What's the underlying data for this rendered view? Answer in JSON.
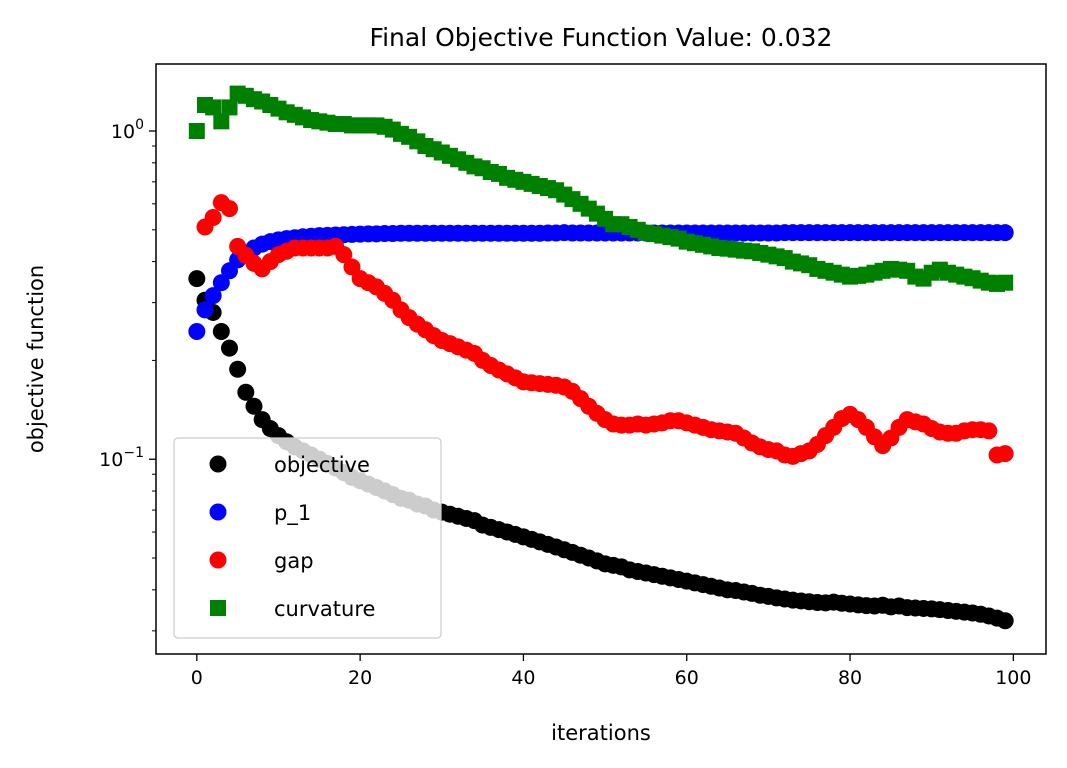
{
  "chart_data": {
    "type": "scatter",
    "title": "Final Objective Function Value: 0.032",
    "xlabel": "iterations",
    "ylabel": "objective function",
    "yscale": "log",
    "xlim": [
      -5,
      104
    ],
    "ylim": [
      0.0255,
      1.6
    ],
    "grid": false,
    "legend_position": "lower-left",
    "x_ticks": [
      0,
      20,
      40,
      60,
      80,
      100
    ],
    "x_tick_labels": [
      "0",
      "20",
      "40",
      "60",
      "80",
      "100"
    ],
    "y_ticks": [
      {
        "value": 1,
        "base": "10",
        "exp": "0"
      },
      {
        "value": 0.1,
        "base": "10",
        "exp": "−1"
      }
    ],
    "y_minor_ticks": [
      0.03,
      0.04,
      0.05,
      0.06,
      0.07,
      0.08,
      0.09,
      0.2,
      0.3,
      0.4,
      0.5,
      0.6,
      0.7,
      0.8,
      0.9
    ],
    "x": [
      0,
      1,
      2,
      3,
      4,
      5,
      6,
      7,
      8,
      9,
      10,
      11,
      12,
      13,
      14,
      15,
      16,
      17,
      18,
      19,
      20,
      21,
      22,
      23,
      24,
      25,
      26,
      27,
      28,
      29,
      30,
      31,
      32,
      33,
      34,
      35,
      36,
      37,
      38,
      39,
      40,
      41,
      42,
      43,
      44,
      45,
      46,
      47,
      48,
      49,
      50,
      51,
      52,
      53,
      54,
      55,
      56,
      57,
      58,
      59,
      60,
      61,
      62,
      63,
      64,
      65,
      66,
      67,
      68,
      69,
      70,
      71,
      72,
      73,
      74,
      75,
      76,
      77,
      78,
      79,
      80,
      81,
      82,
      83,
      84,
      85,
      86,
      87,
      88,
      89,
      90,
      91,
      92,
      93,
      94,
      95,
      96,
      97,
      98,
      99
    ],
    "series": [
      {
        "name": "objective",
        "marker": "circle",
        "color": "#000000",
        "values": [
          0.355,
          0.305,
          0.28,
          0.245,
          0.218,
          0.188,
          0.16,
          0.145,
          0.132,
          0.124,
          0.118,
          0.113,
          0.109,
          0.106,
          0.103,
          0.1,
          0.097,
          0.094,
          0.091,
          0.088,
          0.086,
          0.084,
          0.082,
          0.08,
          0.078,
          0.076,
          0.075,
          0.073,
          0.072,
          0.07,
          0.069,
          0.068,
          0.067,
          0.066,
          0.065,
          0.063,
          0.062,
          0.061,
          0.06,
          0.059,
          0.058,
          0.057,
          0.056,
          0.055,
          0.054,
          0.053,
          0.052,
          0.051,
          0.05,
          0.049,
          0.048,
          0.0475,
          0.047,
          0.046,
          0.0455,
          0.045,
          0.0445,
          0.044,
          0.0435,
          0.043,
          0.0425,
          0.042,
          0.0415,
          0.041,
          0.0405,
          0.04,
          0.0398,
          0.0394,
          0.039,
          0.0385,
          0.0382,
          0.0378,
          0.0375,
          0.0372,
          0.037,
          0.0368,
          0.0366,
          0.0365,
          0.0367,
          0.0364,
          0.0362,
          0.036,
          0.0358,
          0.0357,
          0.0359,
          0.0355,
          0.0357,
          0.0353,
          0.0352,
          0.0351,
          0.035,
          0.0348,
          0.0346,
          0.0344,
          0.0342,
          0.034,
          0.0337,
          0.0333,
          0.0328,
          0.0322
        ]
      },
      {
        "name": "p_1",
        "marker": "circle",
        "color": "#0000ff",
        "values": [
          0.245,
          0.285,
          0.315,
          0.345,
          0.375,
          0.405,
          0.425,
          0.44,
          0.452,
          0.46,
          0.466,
          0.47,
          0.473,
          0.476,
          0.478,
          0.48,
          0.481,
          0.482,
          0.483,
          0.484,
          0.485,
          0.486,
          0.486,
          0.487,
          0.487,
          0.488,
          0.488,
          0.488,
          0.488,
          0.488,
          0.488,
          0.488,
          0.488,
          0.488,
          0.488,
          0.488,
          0.488,
          0.488,
          0.488,
          0.488,
          0.488,
          0.488,
          0.488,
          0.489,
          0.489,
          0.49,
          0.489,
          0.489,
          0.489,
          0.489,
          0.489,
          0.489,
          0.489,
          0.489,
          0.489,
          0.489,
          0.489,
          0.489,
          0.489,
          0.489,
          0.489,
          0.489,
          0.489,
          0.489,
          0.489,
          0.489,
          0.489,
          0.489,
          0.489,
          0.489,
          0.489,
          0.489,
          0.49,
          0.49,
          0.49,
          0.49,
          0.49,
          0.49,
          0.49,
          0.49,
          0.49,
          0.49,
          0.49,
          0.49,
          0.49,
          0.49,
          0.49,
          0.49,
          0.49,
          0.49,
          0.49,
          0.49,
          0.49,
          0.49,
          0.49,
          0.49,
          0.49,
          0.49,
          0.49,
          0.49
        ]
      },
      {
        "name": "gap",
        "marker": "circle",
        "color": "#ff0000",
        "values": [
          null,
          0.51,
          0.545,
          0.605,
          0.58,
          0.445,
          0.418,
          0.395,
          0.38,
          0.4,
          0.42,
          0.43,
          0.44,
          0.44,
          0.44,
          0.44,
          0.44,
          0.445,
          0.42,
          0.385,
          0.355,
          0.345,
          0.335,
          0.32,
          0.305,
          0.285,
          0.27,
          0.258,
          0.248,
          0.238,
          0.23,
          0.225,
          0.22,
          0.215,
          0.21,
          0.2,
          0.193,
          0.187,
          0.182,
          0.177,
          0.172,
          0.171,
          0.17,
          0.169,
          0.168,
          0.166,
          0.161,
          0.153,
          0.145,
          0.138,
          0.132,
          0.128,
          0.127,
          0.127,
          0.128,
          0.127,
          0.128,
          0.129,
          0.131,
          0.131,
          0.129,
          0.127,
          0.125,
          0.123,
          0.122,
          0.121,
          0.12,
          0.116,
          0.112,
          0.109,
          0.107,
          0.106,
          0.103,
          0.102,
          0.104,
          0.106,
          0.111,
          0.118,
          0.125,
          0.133,
          0.137,
          0.132,
          0.125,
          0.117,
          0.11,
          0.116,
          0.125,
          0.132,
          0.13,
          0.128,
          0.124,
          0.121,
          0.12,
          0.12,
          0.122,
          0.123,
          0.123,
          0.122,
          0.103,
          0.104
        ]
      },
      {
        "name": "curvature",
        "marker": "square",
        "color": "#008000",
        "values": [
          1.0,
          1.2,
          1.18,
          1.07,
          1.18,
          1.3,
          1.28,
          1.25,
          1.23,
          1.2,
          1.17,
          1.14,
          1.12,
          1.1,
          1.08,
          1.07,
          1.06,
          1.05,
          1.05,
          1.04,
          1.04,
          1.04,
          1.04,
          1.03,
          1.01,
          0.98,
          0.96,
          0.93,
          0.9,
          0.88,
          0.86,
          0.84,
          0.82,
          0.8,
          0.78,
          0.77,
          0.75,
          0.74,
          0.72,
          0.71,
          0.7,
          0.69,
          0.68,
          0.67,
          0.66,
          0.64,
          0.62,
          0.6,
          0.58,
          0.56,
          0.54,
          0.52,
          0.52,
          0.51,
          0.5,
          0.49,
          0.485,
          0.48,
          0.475,
          0.47,
          0.46,
          0.455,
          0.45,
          0.445,
          0.44,
          0.438,
          0.435,
          0.432,
          0.43,
          0.425,
          0.42,
          0.415,
          0.41,
          0.4,
          0.395,
          0.39,
          0.38,
          0.375,
          0.37,
          0.365,
          0.36,
          0.362,
          0.365,
          0.37,
          0.375,
          0.38,
          0.378,
          0.375,
          0.36,
          0.355,
          0.37,
          0.378,
          0.37,
          0.365,
          0.36,
          0.356,
          0.35,
          0.345,
          0.342,
          0.345
        ]
      }
    ],
    "legend": [
      {
        "label": "objective",
        "marker": "circle",
        "color": "#000000"
      },
      {
        "label": "p_1",
        "marker": "circle",
        "color": "#0000ff"
      },
      {
        "label": "gap",
        "marker": "circle",
        "color": "#ff0000"
      },
      {
        "label": "curvature",
        "marker": "square",
        "color": "#008000"
      }
    ]
  }
}
